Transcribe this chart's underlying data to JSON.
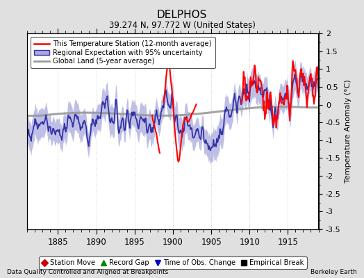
{
  "title": "DELPHOS",
  "subtitle": "39.274 N, 97.772 W (United States)",
  "ylabel": "Temperature Anomaly (°C)",
  "footer_left": "Data Quality Controlled and Aligned at Breakpoints",
  "footer_right": "Berkeley Earth",
  "xlim": [
    1881,
    1919
  ],
  "ylim": [
    -3.5,
    2.0
  ],
  "xticks": [
    1885,
    1890,
    1895,
    1900,
    1905,
    1910,
    1915
  ],
  "yticks": [
    -3.5,
    -3,
    -2.5,
    -2,
    -1.5,
    -1,
    -0.5,
    0,
    0.5,
    1,
    1.5,
    2
  ],
  "legend_items": [
    {
      "label": "This Temperature Station (12-month average)",
      "color": "#ff0000",
      "lw": 2
    },
    {
      "label": "Regional Expectation with 95% uncertainty",
      "color": "#5555bb",
      "lw": 1.5
    },
    {
      "label": "Global Land (5-year average)",
      "color": "#aaaaaa",
      "lw": 2
    }
  ],
  "bottom_legend": [
    {
      "label": "Station Move",
      "marker": "D",
      "color": "#cc0000"
    },
    {
      "label": "Record Gap",
      "marker": "^",
      "color": "#008800"
    },
    {
      "label": "Time of Obs. Change",
      "marker": "v",
      "color": "#0000cc"
    },
    {
      "label": "Empirical Break",
      "marker": "s",
      "color": "#000000"
    }
  ],
  "bg_color": "#e0e0e0",
  "plot_bg_color": "#ffffff",
  "regional_fill_color": "#aaaadd",
  "regional_line_color": "#3333aa",
  "station_color": "#ff0000",
  "global_color": "#999999",
  "seed": 12345
}
